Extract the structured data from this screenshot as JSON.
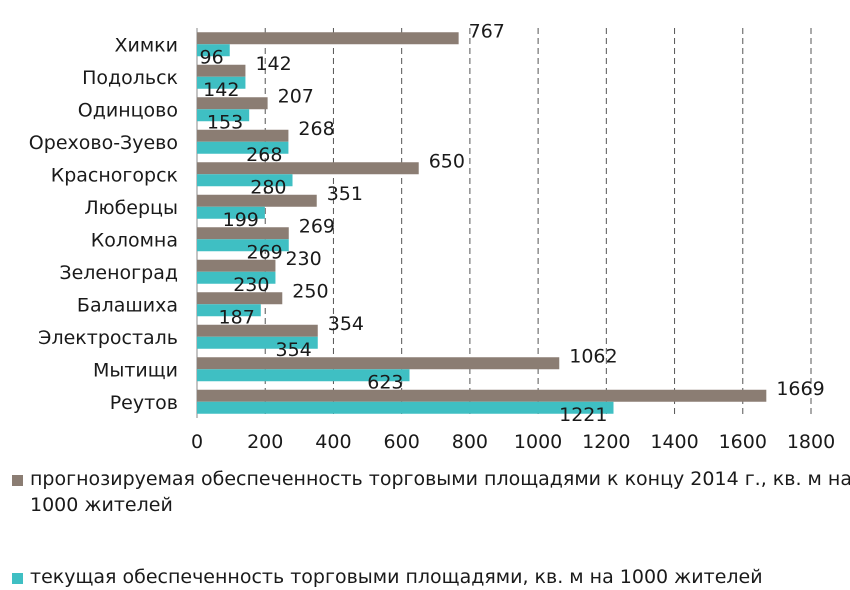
{
  "chart_data": {
    "type": "bar",
    "orientation": "horizontal",
    "categories": [
      "Химки",
      "Подольск",
      "Одинцово",
      "Орехово-Зуево",
      "Красногорск",
      "Люберцы",
      "Коломна",
      "Зеленоград",
      "Балашиха",
      "Электросталь",
      "Мытищи",
      "Реутов"
    ],
    "series": [
      {
        "name": "прогнозируемая обеспеченность торговыми площадями к концу 2014 г., кв. м на 1000 жителей",
        "color": "#8b7d73",
        "values": [
          767,
          142,
          207,
          268,
          650,
          351,
          269,
          230,
          250,
          354,
          1062,
          1669
        ]
      },
      {
        "name": "текущая обеспеченность торговыми площадями, кв. м на 1000 жителей",
        "color": "#3fbfc3",
        "values": [
          96,
          142,
          153,
          268,
          280,
          199,
          269,
          230,
          187,
          354,
          623,
          1221
        ]
      }
    ],
    "xlim": [
      0,
      1800
    ],
    "xticks": [
      "0",
      "200",
      "400",
      "600",
      "800",
      "1000",
      "1200",
      "1400",
      "1600",
      "1800"
    ],
    "grid": "vertical dashed",
    "legend_position": "bottom"
  }
}
